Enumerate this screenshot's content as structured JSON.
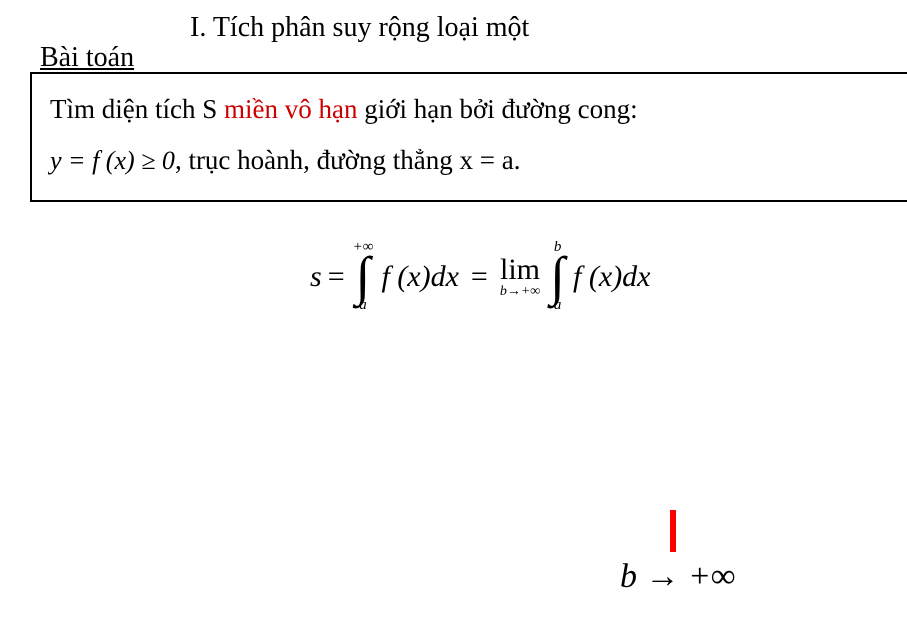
{
  "header": {
    "section_title": "I. Tích phân suy rộng loại một",
    "problem_label": "Bài toán"
  },
  "problem_box": {
    "line1_prefix": "Tìm diện tích S ",
    "line1_highlight": "miền vô hạn",
    "line1_suffix": " giới hạn bởi đường cong:",
    "inline_formula": "y = f (x) ≥ 0",
    "line2_text": ", trục hoành, đường thẳng  x = a."
  },
  "equation": {
    "lhs_var": "s",
    "eq1": "=",
    "int1_upper": "+∞",
    "int1_lower": "a",
    "integrand1": "f (x)dx",
    "eq2": "=",
    "lim_text": "lim",
    "lim_sub": "b→+∞",
    "int2_upper": "b",
    "int2_lower": "a",
    "integrand2": "f (x)dx"
  },
  "bottom": {
    "expr": "b → +∞"
  },
  "colors": {
    "red": "#cc0000",
    "text": "#000000",
    "bar_red": "#ff0000",
    "bg": "#ffffff"
  }
}
